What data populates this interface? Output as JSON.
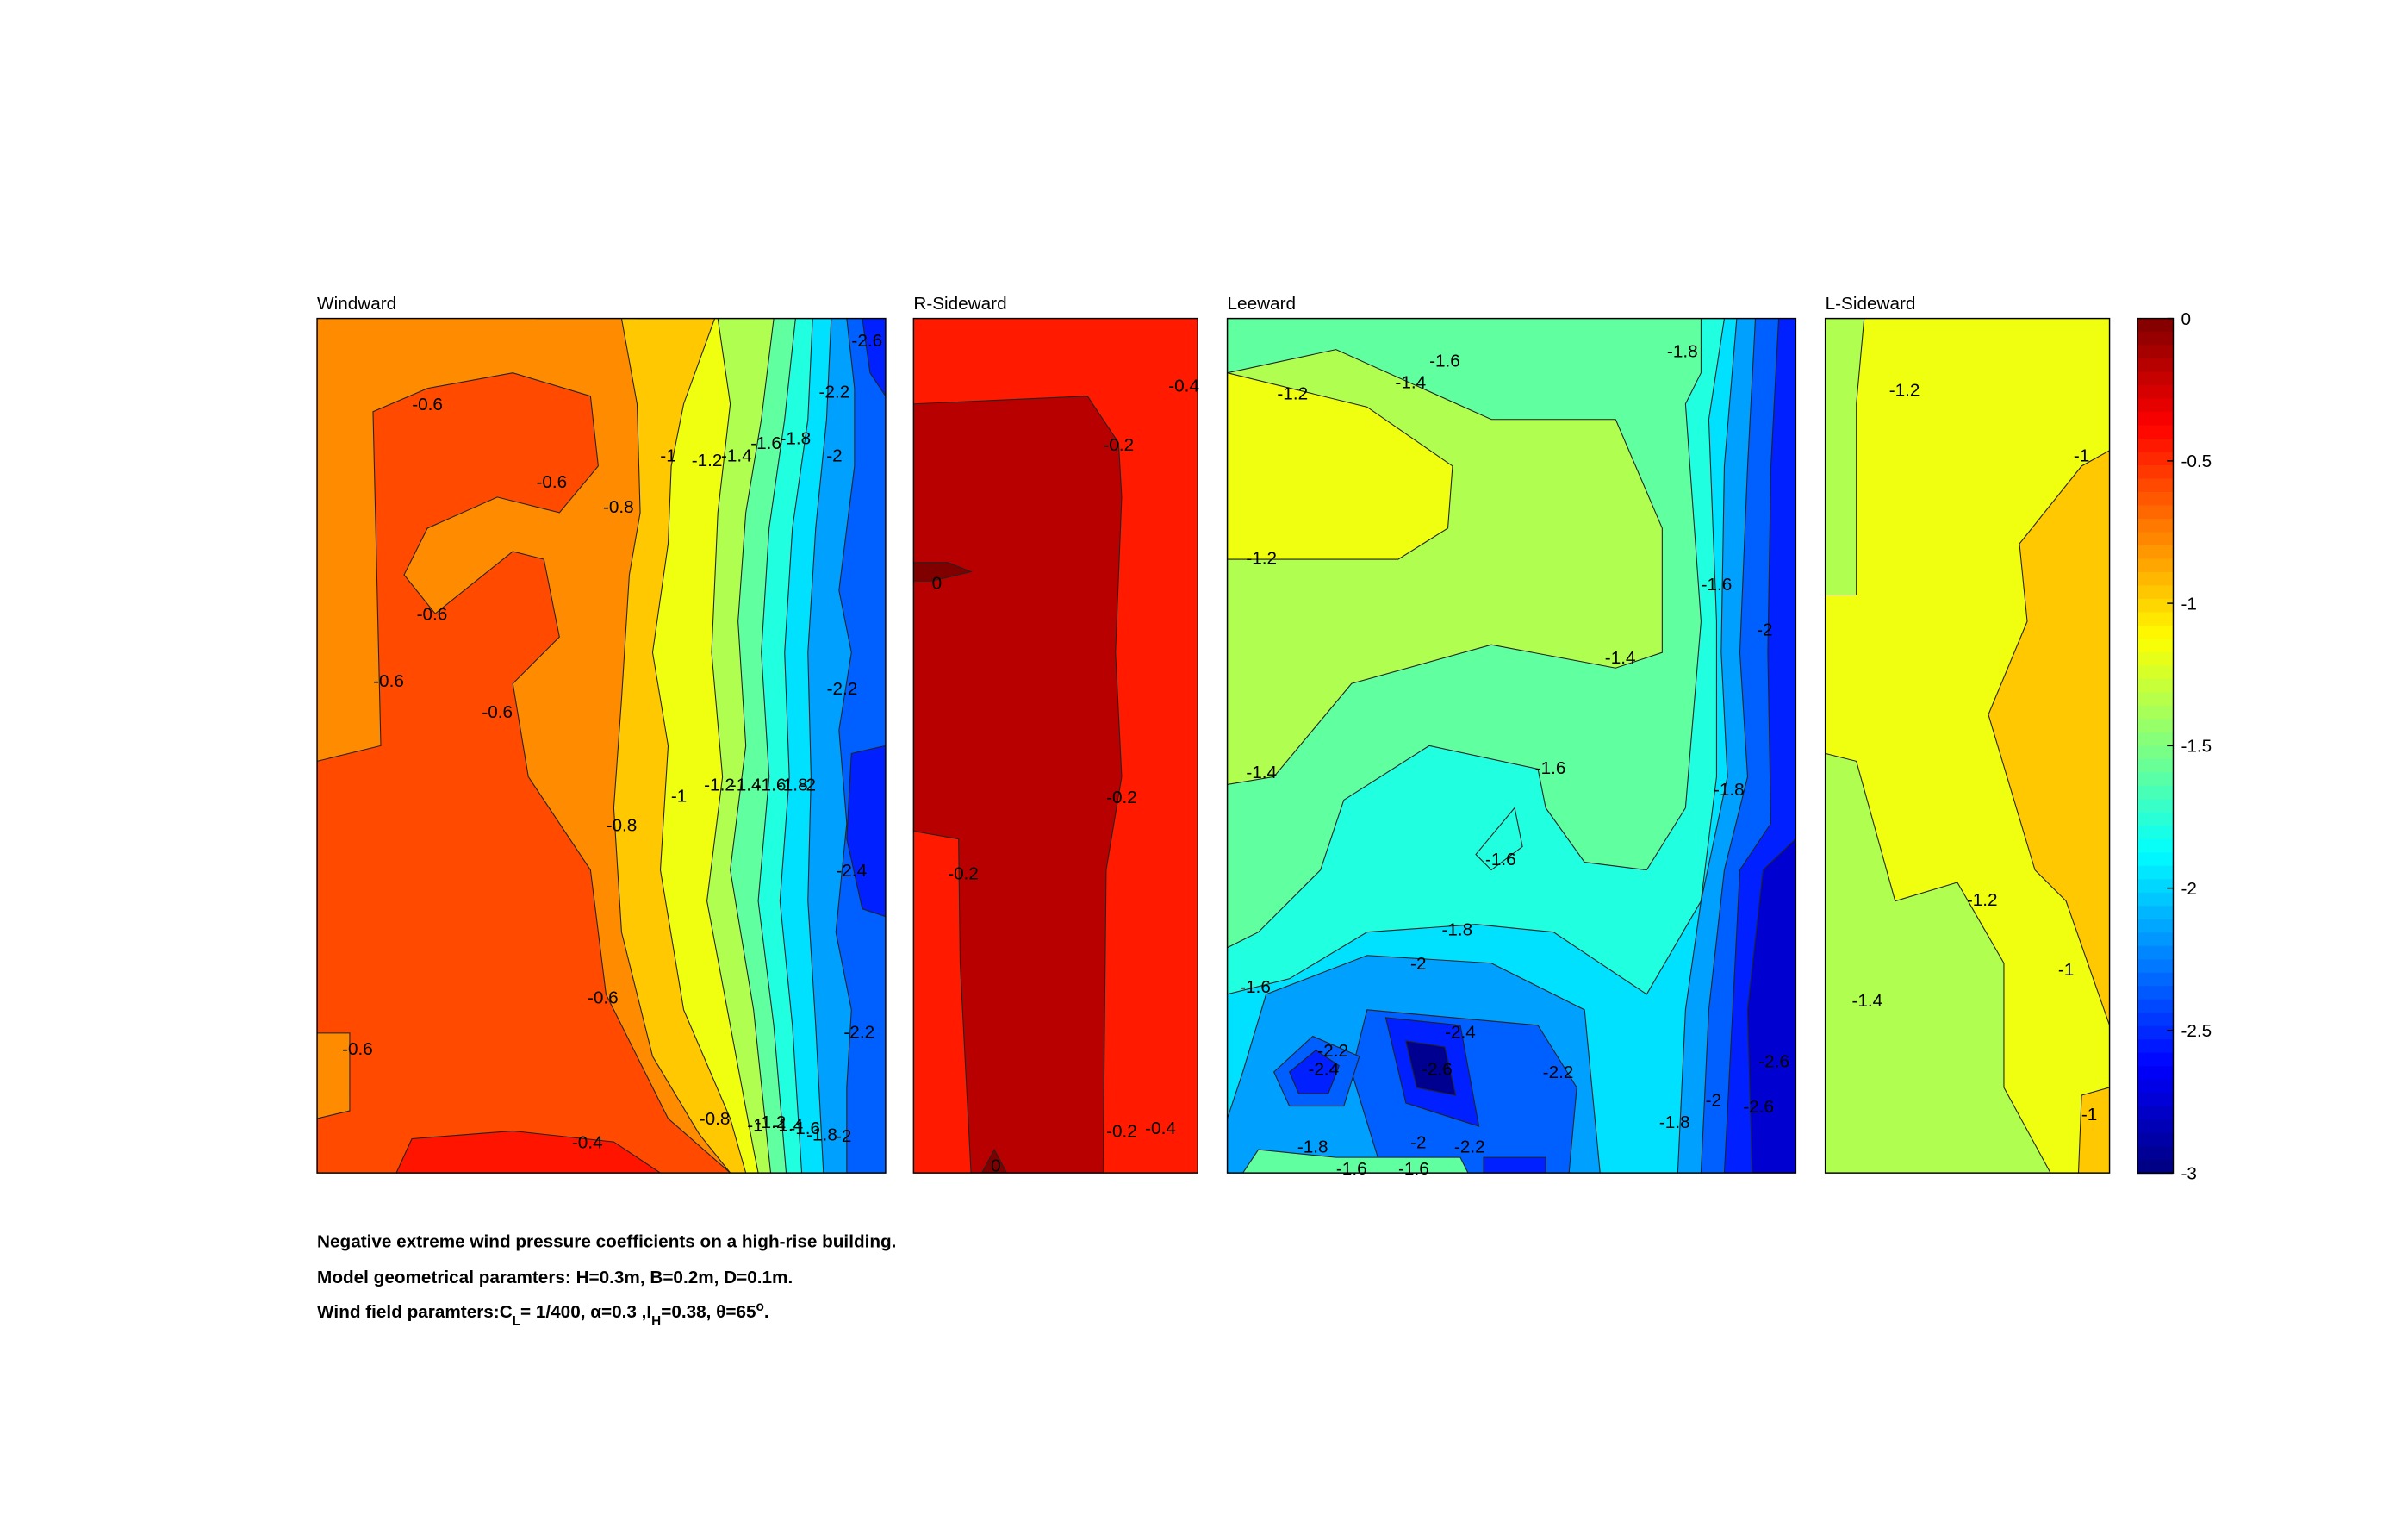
{
  "chart_data": {
    "type": "contour",
    "colormap": "jet",
    "clim": [
      -3,
      0
    ],
    "cticks": [
      0,
      -0.5,
      -1,
      -1.5,
      -2,
      -2.5,
      -3
    ],
    "panels": [
      {
        "title": "Windward",
        "contour_labels": [
          -0.6,
          -0.6,
          -0.8,
          -1,
          -1.2,
          -1.4,
          -1.6,
          -1.8,
          -2.2,
          -2,
          -2.6,
          -0.6,
          -0.6,
          -0.6,
          -2.2,
          -1,
          -1.2,
          -1.4,
          -1.6,
          -1.8,
          -2,
          -0.8,
          -2.4,
          -0.6,
          -0.6,
          -2.2,
          -0.8,
          -0.4,
          -1,
          -1.2,
          -1.4,
          -1.6,
          -1.8,
          -2
        ]
      },
      {
        "title": "R-Sideward",
        "contour_labels": [
          -0.4,
          -0.2,
          0,
          -0.2,
          -0.2,
          -0.2,
          -0.4,
          0
        ]
      },
      {
        "title": "Leeward",
        "contour_labels": [
          -1.8,
          -1.6,
          -1.4,
          -1.2,
          -1.2,
          -1.6,
          -2,
          -1.4,
          -1.4,
          -1.6,
          -1.8,
          -1.6,
          -1.8,
          -2,
          -1.6,
          -2.4,
          -2.2,
          -2.4,
          -2.6,
          -2.2,
          -2.6,
          -2,
          -2.6,
          -1.8,
          -2,
          -2.2,
          -1.8,
          -1.6,
          -1.6
        ]
      },
      {
        "title": "L-Sideward",
        "contour_labels": [
          -1.2,
          -1,
          -1.2,
          -1,
          -1.4,
          -1
        ]
      }
    ]
  },
  "caption": {
    "line1": "Negative extreme wind pressure coefficients on a high-rise building.",
    "line2": "Model geometrical paramters: H=0.3m, B=0.2m, D=0.1m.",
    "line3": [
      "Wind field paramters:C",
      "L",
      "= 1/400, α=0.3 ,I",
      "H",
      "=0.38, θ=65",
      "o",
      "."
    ]
  }
}
